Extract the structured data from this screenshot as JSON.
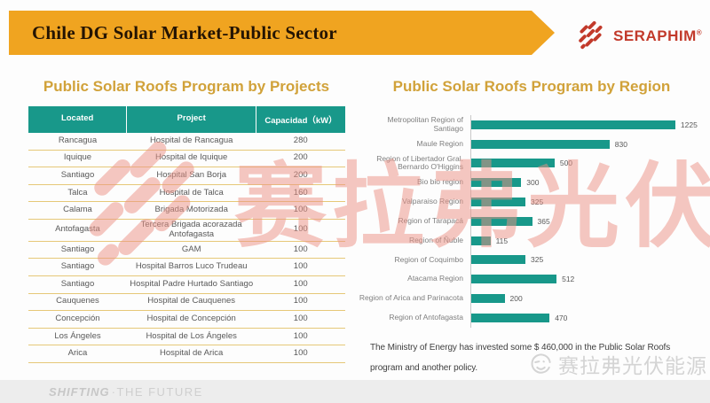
{
  "header": {
    "title": "Chile DG Solar Market-Public Sector",
    "banner_color": "#F0A420",
    "brand": "SERAPHIM",
    "brand_registered_mark": "®",
    "brand_color": "#C23A2B",
    "brand_icon": "seraphim-hatch-icon"
  },
  "left_panel": {
    "title": "Public Solar Roofs Program by Projects",
    "table": {
      "header_bg": "#18988A",
      "row_line_color": "#E6C878",
      "columns": [
        "Located",
        "Project",
        "Capacidad（kW）"
      ],
      "rows": [
        [
          "Rancagua",
          "Hospital de Rancagua",
          "280"
        ],
        [
          "Iquique",
          "Hospital de Iquique",
          "200"
        ],
        [
          "Santiago",
          "Hospital San Borja",
          "200"
        ],
        [
          "Talca",
          "Hospital de Talca",
          "160"
        ],
        [
          "Calama",
          "Brigada Motorizada",
          "100"
        ],
        [
          "Antofagasta",
          "Tercera Brigada acorazada Antofagasta",
          "100"
        ],
        [
          "Santiago",
          "GAM",
          "100"
        ],
        [
          "Santiago",
          "Hospital Barros Luco Trudeau",
          "100"
        ],
        [
          "Santiago",
          "Hospital Padre Hurtado Santiago",
          "100"
        ],
        [
          "Cauquenes",
          "Hospital de Cauquenes",
          "100"
        ],
        [
          "Concepción",
          "Hospital de Concepción",
          "100"
        ],
        [
          "Los Ángeles",
          "Hospital de Los Ángeles",
          "100"
        ],
        [
          "Arica",
          "Hospital de Arica",
          "100"
        ]
      ]
    }
  },
  "right_panel": {
    "title": "Public Solar Roofs Program by Region",
    "note_line1": "The Ministry of Energy has invested some $ 460,000 in the Public Solar Roofs",
    "note_line2": "program and another policy."
  },
  "chart_data": {
    "type": "bar",
    "orientation": "horizontal",
    "title": "Public Solar Roofs Program by Region",
    "categories": [
      "Metropolitan Region of Santiago",
      "Maule Region",
      "Region of Libertador Gral. Bernardo O'Higgins",
      "Bio bio region",
      "Valparaiso Region",
      "Region of Tarapacá",
      "Region of Ñuble",
      "Region of Coquimbo",
      "Atacama Region",
      "Region of Arica and Parinacota",
      "Region of Antofagasta"
    ],
    "values": [
      1225,
      830,
      500,
      300,
      325,
      365,
      115,
      325,
      512,
      200,
      470
    ],
    "data_labels": true,
    "xlim": [
      0,
      1300
    ],
    "bar_color": "#18988A",
    "grid": false,
    "legend": false
  },
  "watermarks": {
    "center_icon": "seraphim-hatch-icon",
    "center_text": "赛拉弗光伏",
    "center_color": "#EC9184",
    "bottom_right_icon": "wink-face-icon",
    "bottom_right_text": "赛拉弗光伏能源"
  },
  "footer": {
    "tagline_bold": "SHIFTING",
    "tagline_rest": "·THE FUTURE"
  }
}
